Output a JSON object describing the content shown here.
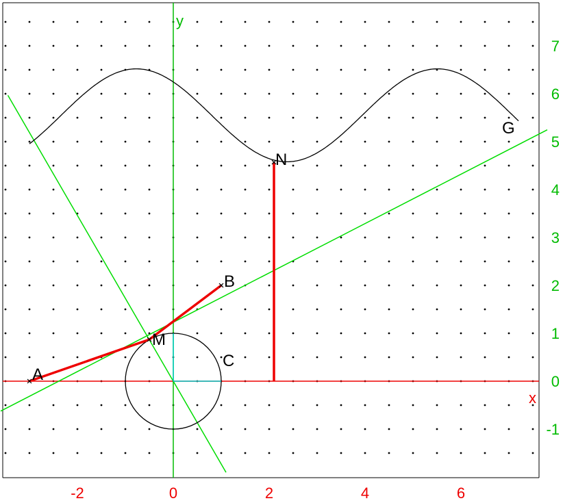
{
  "axes": {
    "x_label": "x",
    "y_label": "y",
    "x_range": [
      -3.6,
      7.8
    ],
    "y_range": [
      -2.0,
      7.8
    ],
    "x_ticks": [
      -2,
      0,
      2,
      4,
      6
    ],
    "y_ticks": [
      -1,
      0,
      1,
      2,
      3,
      4,
      5,
      6,
      7
    ],
    "x_tick_labels": [
      "-2",
      "0",
      "2",
      "4",
      "6"
    ],
    "y_tick_labels": [
      "-1",
      "0",
      "1",
      "2",
      "3",
      "4",
      "5",
      "6",
      "7"
    ],
    "x_axis_color": "#ee0000",
    "y_axis_color": "#00bb00",
    "grid": "dots",
    "grid_step": 0.5
  },
  "points": {
    "A": {
      "label": "A",
      "x": -3,
      "y": 0
    },
    "B": {
      "label": "B",
      "x": 1,
      "y": 2
    },
    "M": {
      "label": "M",
      "x": -0.5,
      "y": 0.87
    },
    "N": {
      "label": "N",
      "x": 2.1,
      "y": 4.57
    },
    "C": {
      "label": "C"
    },
    "G": {
      "label": "G"
    }
  },
  "circle": {
    "center": [
      0,
      0
    ],
    "radius": 1
  },
  "curve": {
    "x_start": -3,
    "x_end": 7.2,
    "center_y": 5.55,
    "amplitude": 0.97,
    "period": 6.28,
    "phase": 0.8
  },
  "lines": [
    {
      "name": "steep-line",
      "slope": -1.73,
      "intercept": 0,
      "color": "#00dd00"
    },
    {
      "name": "tangent-line",
      "slope": 0.515,
      "intercept": 1.23,
      "color": "#00dd00"
    }
  ],
  "colors": {
    "segments": "#ee0000",
    "radii": "#00cccc",
    "curve": "#000000",
    "circle": "#000000"
  }
}
